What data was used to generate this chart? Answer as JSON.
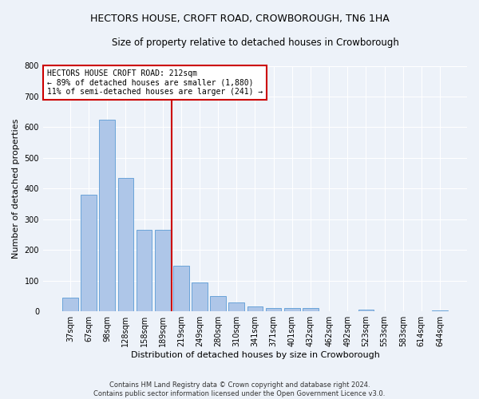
{
  "title": "HECTORS HOUSE, CROFT ROAD, CROWBOROUGH, TN6 1HA",
  "subtitle": "Size of property relative to detached houses in Crowborough",
  "xlabel": "Distribution of detached houses by size in Crowborough",
  "ylabel": "Number of detached properties",
  "bar_labels": [
    "37sqm",
    "67sqm",
    "98sqm",
    "128sqm",
    "158sqm",
    "189sqm",
    "219sqm",
    "249sqm",
    "280sqm",
    "310sqm",
    "341sqm",
    "371sqm",
    "401sqm",
    "432sqm",
    "462sqm",
    "492sqm",
    "523sqm",
    "553sqm",
    "583sqm",
    "614sqm",
    "644sqm"
  ],
  "bar_values": [
    45,
    380,
    625,
    435,
    265,
    265,
    150,
    95,
    50,
    30,
    15,
    10,
    10,
    10,
    0,
    0,
    5,
    0,
    0,
    0,
    2
  ],
  "bar_color": "#aec6e8",
  "bar_edge_color": "#5b9bd5",
  "vline_index": 6,
  "annotation_title": "HECTORS HOUSE CROFT ROAD: 212sqm",
  "annotation_line1": "← 89% of detached houses are smaller (1,880)",
  "annotation_line2": "11% of semi-detached houses are larger (241) →",
  "annotation_box_color": "#ffffff",
  "annotation_box_edge_color": "#cc0000",
  "vline_color": "#cc0000",
  "ylim": [
    0,
    800
  ],
  "yticks": [
    0,
    100,
    200,
    300,
    400,
    500,
    600,
    700,
    800
  ],
  "background_color": "#edf2f9",
  "plot_bg_color": "#edf2f9",
  "footer_line1": "Contains HM Land Registry data © Crown copyright and database right 2024.",
  "footer_line2": "Contains public sector information licensed under the Open Government Licence v3.0.",
  "title_fontsize": 9,
  "subtitle_fontsize": 8.5,
  "tick_fontsize": 7,
  "label_fontsize": 8,
  "annot_fontsize": 7,
  "footer_fontsize": 6
}
